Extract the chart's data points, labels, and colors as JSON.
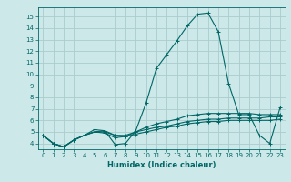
{
  "xlabel": "Humidex (Indice chaleur)",
  "background_color": "#cce8e8",
  "grid_color": "#aacccc",
  "line_color": "#006666",
  "xlim": [
    -0.5,
    23.5
  ],
  "ylim": [
    3.5,
    15.8
  ],
  "x": [
    0,
    1,
    2,
    3,
    4,
    5,
    6,
    7,
    8,
    9,
    10,
    11,
    12,
    13,
    14,
    15,
    16,
    17,
    18,
    19,
    20,
    21,
    22,
    23
  ],
  "series": [
    [
      4.7,
      4.0,
      3.7,
      4.3,
      4.7,
      5.2,
      5.1,
      3.9,
      4.0,
      5.1,
      7.5,
      10.5,
      11.7,
      12.9,
      14.2,
      15.2,
      15.3,
      13.7,
      9.2,
      6.5,
      6.5,
      4.7,
      4.0,
      7.1
    ],
    [
      4.7,
      4.0,
      3.7,
      4.3,
      4.7,
      5.0,
      4.9,
      4.5,
      4.6,
      5.0,
      5.4,
      5.7,
      5.9,
      6.1,
      6.4,
      6.5,
      6.6,
      6.6,
      6.6,
      6.6,
      6.6,
      6.5,
      6.5,
      6.5
    ],
    [
      4.7,
      4.0,
      3.7,
      4.3,
      4.7,
      5.0,
      5.0,
      4.7,
      4.7,
      5.0,
      5.2,
      5.4,
      5.5,
      5.7,
      5.9,
      6.0,
      6.1,
      6.1,
      6.2,
      6.2,
      6.2,
      6.2,
      6.3,
      6.3
    ],
    [
      4.7,
      4.0,
      3.7,
      4.3,
      4.7,
      5.0,
      5.1,
      4.7,
      4.6,
      4.8,
      5.0,
      5.2,
      5.4,
      5.5,
      5.7,
      5.8,
      5.9,
      5.9,
      6.0,
      6.0,
      6.0,
      6.0,
      6.0,
      6.1
    ]
  ],
  "yticks": [
    4,
    5,
    6,
    7,
    8,
    9,
    10,
    11,
    12,
    13,
    14,
    15
  ],
  "xticks": [
    0,
    1,
    2,
    3,
    4,
    5,
    6,
    7,
    8,
    9,
    10,
    11,
    12,
    13,
    14,
    15,
    16,
    17,
    18,
    19,
    20,
    21,
    22,
    23
  ],
  "marker": "+",
  "marker_size": 3,
  "line_width": 0.8,
  "font_size_ticks": 5,
  "font_size_xlabel": 6
}
